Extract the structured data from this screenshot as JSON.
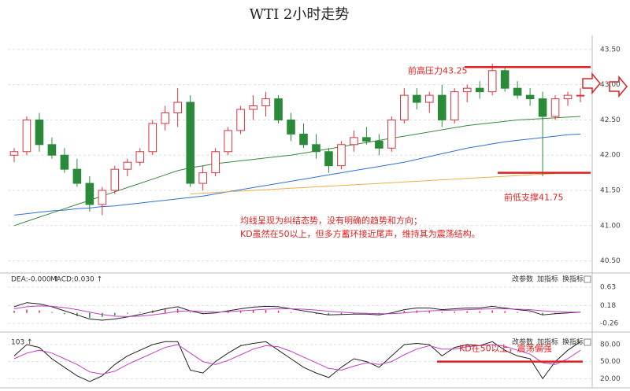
{
  "chart_data": [
    {
      "type": "candlestick",
      "title": "WTI 2小时走势",
      "open": [
        42.0,
        42.05,
        42.5,
        42.15,
        42.0,
        41.8,
        41.6,
        41.3,
        41.5,
        41.8,
        41.9,
        42.05,
        42.45,
        42.6,
        42.75,
        41.6,
        41.75,
        42.05,
        42.35,
        42.65,
        42.7,
        42.8,
        42.5,
        42.3,
        42.15,
        42.05,
        41.85,
        42.15,
        42.25,
        42.2,
        42.1,
        42.5,
        42.85,
        42.75,
        42.85,
        42.5,
        42.9,
        42.95,
        42.9,
        43.2,
        42.95,
        42.85,
        42.8,
        42.55,
        42.8,
        42.85
      ],
      "high": [
        42.1,
        42.55,
        42.6,
        42.25,
        42.1,
        41.95,
        41.7,
        41.55,
        41.85,
        41.95,
        42.1,
        42.5,
        42.7,
        42.95,
        42.85,
        41.85,
        42.1,
        42.4,
        42.7,
        42.85,
        42.9,
        42.85,
        42.6,
        42.45,
        42.3,
        42.1,
        42.2,
        42.35,
        42.4,
        42.3,
        42.55,
        42.95,
        42.95,
        42.9,
        43.0,
        42.95,
        43.0,
        43.05,
        43.3,
        43.25,
        43.05,
        42.95,
        42.9,
        42.85,
        42.9,
        42.95
      ],
      "low": [
        41.9,
        42.0,
        42.05,
        41.95,
        41.75,
        41.55,
        41.2,
        41.15,
        41.45,
        41.7,
        41.85,
        42.0,
        42.35,
        42.4,
        41.55,
        41.5,
        41.7,
        42.0,
        42.3,
        42.5,
        42.55,
        42.45,
        42.2,
        42.1,
        41.95,
        41.75,
        41.8,
        42.05,
        42.15,
        42.0,
        42.05,
        42.45,
        42.65,
        42.6,
        42.4,
        42.45,
        42.75,
        42.8,
        42.85,
        42.9,
        42.8,
        42.7,
        41.7,
        42.5,
        42.7,
        42.75
      ],
      "close": [
        42.05,
        42.5,
        42.15,
        42.0,
        41.8,
        41.6,
        41.3,
        41.5,
        41.8,
        41.9,
        42.05,
        42.45,
        42.6,
        42.75,
        41.6,
        41.75,
        42.05,
        42.35,
        42.65,
        42.7,
        42.8,
        42.5,
        42.3,
        42.15,
        42.05,
        41.85,
        42.15,
        42.25,
        42.2,
        42.1,
        42.5,
        42.85,
        42.75,
        42.85,
        42.5,
        42.9,
        42.95,
        42.9,
        43.2,
        42.95,
        42.85,
        42.8,
        42.55,
        42.8,
        42.85,
        42.85
      ],
      "up_color": "#d9333f",
      "down_color": "#2a8a3a",
      "lines": [
        {
          "color": "#2f6fd6",
          "values": [
            41.15,
            41.17,
            41.19,
            41.21,
            41.22,
            41.24,
            41.25,
            41.27,
            41.28,
            41.3,
            41.32,
            41.34,
            41.36,
            41.38,
            41.4,
            41.42,
            41.45,
            41.48,
            41.51,
            41.54,
            41.57,
            41.6,
            41.63,
            41.66,
            41.69,
            41.72,
            41.75,
            41.78,
            41.81,
            41.84,
            41.87,
            41.9,
            41.94,
            41.98,
            42.02,
            42.06,
            42.1,
            42.13,
            42.16,
            42.19,
            42.21,
            42.23,
            42.25,
            42.27,
            42.29,
            42.3
          ]
        },
        {
          "color": "#e8b04a",
          "values": [
            null,
            null,
            null,
            null,
            null,
            null,
            null,
            null,
            null,
            null,
            null,
            null,
            null,
            null,
            41.45,
            41.46,
            41.47,
            41.48,
            41.49,
            41.5,
            41.51,
            41.52,
            41.53,
            41.54,
            41.55,
            41.56,
            41.57,
            41.58,
            41.59,
            41.6,
            41.61,
            41.62,
            41.63,
            41.64,
            41.65,
            41.66,
            41.67,
            41.68,
            41.69,
            41.7,
            41.71,
            41.72,
            41.73,
            41.74,
            41.75,
            41.76
          ]
        },
        {
          "color": "#3a8a3a",
          "values": [
            41.0,
            41.06,
            41.12,
            41.18,
            41.24,
            41.3,
            41.36,
            41.42,
            41.48,
            41.54,
            41.6,
            41.66,
            41.72,
            41.78,
            41.82,
            41.85,
            41.88,
            41.9,
            41.92,
            41.94,
            41.96,
            41.98,
            42.0,
            42.03,
            42.06,
            42.09,
            42.12,
            42.15,
            42.18,
            42.21,
            42.24,
            42.27,
            42.3,
            42.33,
            42.36,
            42.39,
            42.42,
            42.44,
            42.46,
            42.48,
            42.5,
            42.51,
            42.52,
            42.53,
            42.54,
            42.55
          ]
        }
      ],
      "ylim": [
        40.35,
        43.7
      ],
      "yticks": [
        {
          "value": 43.5,
          "label": "43.50"
        },
        {
          "value": 43,
          "label": "43.00"
        },
        {
          "value": 42.5,
          "label": "42.50"
        },
        {
          "value": 42,
          "label": "42.00"
        },
        {
          "value": 41.5,
          "label": "41.50"
        },
        {
          "value": 41,
          "label": "41.00"
        },
        {
          "value": 40.5,
          "label": "40.50"
        }
      ],
      "grid": true,
      "annotations": [
        {
          "label": "前高压力43.25",
          "value": 43.25
        },
        {
          "label": "前低支撑41.75",
          "value": 41.75
        }
      ],
      "note": [
        "均线呈现为纠结态势，没有明确的趋势和方向；",
        "KD虽然在50以上，但多方蓄环接近尾声，维持其为震荡结构。"
      ],
      "annotation_color": "#e02020"
    },
    {
      "type": "macd",
      "header": [
        "DEA:-0.000 ↑",
        "MACD:0.030 ↑"
      ],
      "controls": [
        "改参数",
        "加指标",
        "换指标"
      ],
      "histogram": [
        0.05,
        0.08,
        0.06,
        0.02,
        -0.03,
        -0.08,
        -0.12,
        -0.1,
        -0.06,
        -0.02,
        0.02,
        0.06,
        0.09,
        0.1,
        0.02,
        -0.02,
        0.01,
        0.04,
        0.06,
        0.07,
        0.07,
        0.05,
        0.02,
        -0.01,
        -0.03,
        -0.05,
        -0.03,
        -0.02,
        -0.02,
        -0.03,
        0.01,
        0.05,
        0.06,
        0.05,
        0.02,
        0.03,
        0.04,
        0.04,
        0.06,
        0.04,
        0.02,
        0.01,
        -0.04,
        -0.02,
        -0.01,
        0.0
      ],
      "up_color": "#d9333f",
      "down_color": "#2a8a3a",
      "lines": [
        {
          "color": "#222222",
          "values": [
            0.15,
            0.25,
            0.22,
            0.15,
            0.05,
            -0.05,
            -0.15,
            -0.18,
            -0.15,
            -0.1,
            -0.04,
            0.03,
            0.1,
            0.15,
            0.05,
            -0.02,
            0.0,
            0.05,
            0.1,
            0.14,
            0.16,
            0.15,
            0.1,
            0.05,
            0.0,
            -0.05,
            -0.04,
            -0.03,
            -0.03,
            -0.05,
            0.0,
            0.08,
            0.12,
            0.12,
            0.08,
            0.1,
            0.12,
            0.12,
            0.16,
            0.12,
            0.08,
            0.05,
            -0.05,
            -0.02,
            0.0,
            0.02
          ]
        },
        {
          "color": "#c040c0",
          "values": [
            0.1,
            0.15,
            0.17,
            0.16,
            0.13,
            0.08,
            0.02,
            -0.04,
            -0.08,
            -0.09,
            -0.08,
            -0.05,
            -0.01,
            0.04,
            0.05,
            0.03,
            0.02,
            0.03,
            0.05,
            0.07,
            0.09,
            0.1,
            0.1,
            0.09,
            0.07,
            0.04,
            0.02,
            0.0,
            -0.01,
            -0.02,
            -0.02,
            0.0,
            0.03,
            0.05,
            0.06,
            0.07,
            0.08,
            0.09,
            0.1,
            0.1,
            0.09,
            0.08,
            0.05,
            0.03,
            0.02,
            0.02
          ]
        }
      ],
      "ylim": [
        -0.43,
        0.92
      ],
      "yticks": [
        0.63,
        0.18,
        -0.26
      ],
      "grid": true
    },
    {
      "type": "line",
      "header": [
        "103 ↑"
      ],
      "controls": [
        "改参数",
        "加指标",
        "换指标"
      ],
      "lines": [
        {
          "color": "#222222",
          "values": [
            60,
            80,
            75,
            55,
            40,
            25,
            15,
            25,
            45,
            60,
            70,
            80,
            85,
            85,
            35,
            30,
            50,
            65,
            78,
            82,
            85,
            70,
            55,
            40,
            30,
            22,
            40,
            55,
            50,
            40,
            60,
            80,
            82,
            80,
            60,
            75,
            80,
            78,
            85,
            70,
            60,
            55,
            20,
            50,
            70,
            85
          ]
        },
        {
          "color": "#c040c0",
          "values": [
            55,
            65,
            70,
            65,
            55,
            45,
            32,
            28,
            33,
            45,
            55,
            65,
            75,
            80,
            65,
            50,
            45,
            52,
            62,
            72,
            78,
            76,
            68,
            58,
            48,
            38,
            35,
            42,
            48,
            45,
            50,
            62,
            72,
            78,
            72,
            72,
            76,
            78,
            80,
            77,
            70,
            63,
            48,
            45,
            55,
            70
          ]
        }
      ],
      "ylim": [
        8,
        91
      ],
      "yticks": [
        {
          "value": 80,
          "label": "80.00"
        },
        {
          "value": 50,
          "label": "50.00"
        },
        {
          "value": 20,
          "label": "20.00"
        }
      ],
      "grid": true,
      "annotations": [
        {
          "label": "KD在50以上，震荡偏强",
          "value": 50
        }
      ],
      "annotation_color": "#e02020"
    }
  ]
}
